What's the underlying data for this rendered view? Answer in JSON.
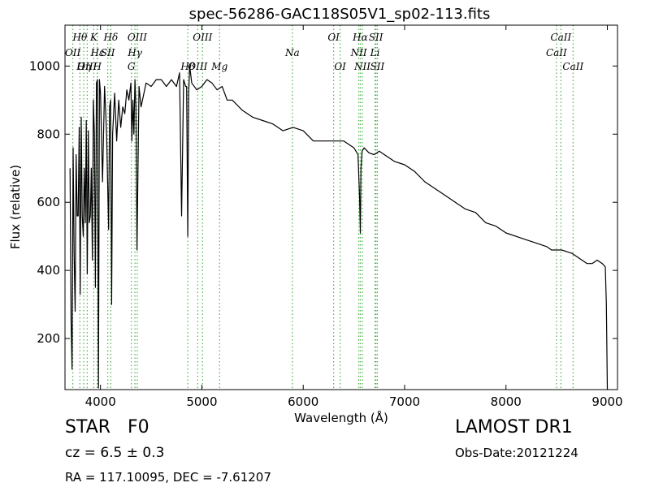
{
  "chart_data": {
    "type": "line",
    "title": "spec-56286-GAC118S05V1_sp02-113.fits",
    "xlabel": "Wavelength (Å)",
    "ylabel": "Flux (relative)",
    "xlim": [
      3650,
      9100
    ],
    "ylim": [
      50,
      1120
    ],
    "xticks": [
      4000,
      5000,
      6000,
      7000,
      8000,
      9000
    ],
    "yticks": [
      200,
      400,
      600,
      800,
      1000
    ],
    "grid": false,
    "series": [
      {
        "color": "#000000",
        "x": [
          3700,
          3710,
          3720,
          3730,
          3740,
          3750,
          3760,
          3770,
          3780,
          3790,
          3800,
          3810,
          3820,
          3830,
          3840,
          3850,
          3860,
          3870,
          3880,
          3890,
          3900,
          3910,
          3920,
          3930,
          3940,
          3950,
          3960,
          3970,
          3980,
          3990,
          4000,
          4020,
          4040,
          4060,
          4080,
          4090,
          4100,
          4110,
          4120,
          4140,
          4160,
          4180,
          4200,
          4220,
          4240,
          4260,
          4280,
          4300,
          4310,
          4320,
          4330,
          4340,
          4350,
          4360,
          4380,
          4400,
          4450,
          4500,
          4550,
          4600,
          4650,
          4700,
          4750,
          4780,
          4800,
          4820,
          4840,
          4850,
          4861,
          4870,
          4880,
          4900,
          4950,
          5000,
          5050,
          5100,
          5150,
          5200,
          5250,
          5300,
          5400,
          5500,
          5600,
          5700,
          5800,
          5900,
          6000,
          6100,
          6200,
          6300,
          6400,
          6500,
          6540,
          6555,
          6563,
          6570,
          6580,
          6600,
          6650,
          6700,
          6750,
          6800,
          6900,
          7000,
          7100,
          7200,
          7300,
          7400,
          7500,
          7600,
          7700,
          7800,
          7900,
          8000,
          8100,
          8200,
          8300,
          8400,
          8450,
          8500,
          8550,
          8600,
          8650,
          8700,
          8750,
          8800,
          8850,
          8900,
          8950,
          8980,
          8990,
          9000
        ],
        "y": [
          700,
          250,
          110,
          760,
          450,
          280,
          740,
          560,
          560,
          820,
          330,
          850,
          560,
          500,
          700,
          540,
          840,
          390,
          810,
          540,
          560,
          700,
          430,
          900,
          800,
          350,
          950,
          960,
          55,
          960,
          920,
          660,
          940,
          800,
          520,
          880,
          900,
          300,
          800,
          920,
          780,
          900,
          820,
          880,
          860,
          930,
          900,
          950,
          780,
          900,
          800,
          960,
          880,
          460,
          940,
          880,
          950,
          940,
          960,
          960,
          940,
          960,
          940,
          980,
          560,
          960,
          940,
          940,
          500,
          920,
          1000,
          950,
          930,
          940,
          960,
          950,
          930,
          940,
          900,
          900,
          870,
          850,
          840,
          830,
          810,
          820,
          810,
          780,
          780,
          780,
          780,
          760,
          740,
          620,
          510,
          700,
          750,
          760,
          745,
          740,
          750,
          740,
          720,
          710,
          690,
          660,
          640,
          620,
          600,
          580,
          570,
          540,
          530,
          510,
          500,
          490,
          480,
          470,
          460,
          460,
          460,
          455,
          450,
          440,
          430,
          420,
          420,
          430,
          420,
          410,
          300,
          50
        ]
      }
    ],
    "lines_top": [
      {
        "label": "Hθ",
        "x": 3797
      },
      {
        "label": "K",
        "x": 3934
      },
      {
        "label": "Hδ",
        "x": 4102
      },
      {
        "label": "OIII",
        "x": 4363
      },
      {
        "label": "OIII",
        "x": 5007
      },
      {
        "label": "OI",
        "x": 6300
      },
      {
        "label": "Hα",
        "x": 6563
      },
      {
        "label": "SII",
        "x": 6717
      },
      {
        "label": "CaII",
        "x": 8542
      }
    ],
    "lines_middle": [
      {
        "label": "OII",
        "x": 3727
      },
      {
        "label": "Hε",
        "x": 3970
      },
      {
        "label": "SII",
        "x": 4072
      },
      {
        "label": "Hγ",
        "x": 4340
      },
      {
        "label": "Na",
        "x": 5893
      },
      {
        "label": "NII",
        "x": 6548
      },
      {
        "label": "Li",
        "x": 6708
      },
      {
        "label": "CaII",
        "x": 8498
      }
    ],
    "lines_bottom": [
      {
        "label": "OIII",
        "x": 3869
      },
      {
        "label": "Hη",
        "x": 3835
      },
      {
        "label": "H",
        "x": 3968
      },
      {
        "label": "G",
        "x": 4305
      },
      {
        "label": "Hβ",
        "x": 4861
      },
      {
        "label": "OIII",
        "x": 4959
      },
      {
        "label": "Mg",
        "x": 5175
      },
      {
        "label": "OI",
        "x": 6364
      },
      {
        "label": "NII",
        "x": 6583
      },
      {
        "label": "SII",
        "x": 6731
      },
      {
        "label": "CaII",
        "x": 8662
      }
    ],
    "line_marker_color": "#4daf4a"
  },
  "info": {
    "object_class": "STAR",
    "subclass": "F0",
    "survey": "LAMOST DR1",
    "redshift": "cz = 6.5 ± 0.3",
    "obs_date": "Obs-Date:20121224",
    "coords": "RA = 117.10095, DEC = -7.61207"
  }
}
